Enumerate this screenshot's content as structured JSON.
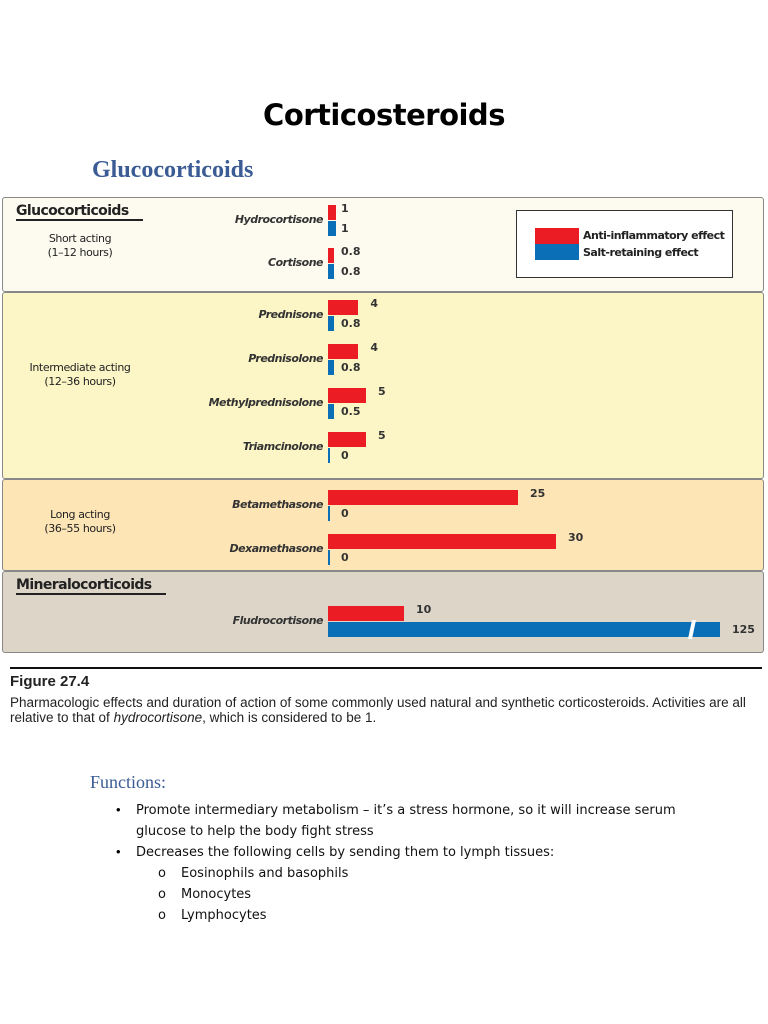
{
  "title": "Corticosteroids",
  "subtitle": "Glucocorticoids",
  "figure": {
    "sections": {
      "gluco": "Glucocorticoids",
      "mineral": "Mineralocorticoids"
    },
    "groups": [
      {
        "label": "Short acting",
        "duration": "(1–12 hours)"
      },
      {
        "label": "Intermediate acting",
        "duration": "(12–36 hours)"
      },
      {
        "label": "Long acting",
        "duration": "(36–55 hours)"
      }
    ],
    "legend": {
      "anti": "Anti-inflammatory effect",
      "salt": "Salt-retaining effect"
    },
    "colors": {
      "anti": "#ec1c24",
      "salt": "#0b6fb8"
    },
    "number": "Figure 27.4",
    "caption_pre": "Pharmacologic effects and duration of action of some commonly used natural and synthetic corticosteroids. Activities are all relative to that of ",
    "caption_italic": "hydrocortisone",
    "caption_post": ", which is considered to be 1."
  },
  "chart_data": {
    "type": "bar",
    "categories": [
      "Hydrocortisone",
      "Cortisone",
      "Prednisone",
      "Prednisolone",
      "Methylprednisolone",
      "Triamcinolone",
      "Betamethasone",
      "Dexamethasone",
      "Fludrocortisone"
    ],
    "series": [
      {
        "name": "Anti-inflammatory effect",
        "values": [
          1,
          0.8,
          4,
          4,
          5,
          5,
          25,
          30,
          10
        ],
        "labels": [
          "1",
          "0.8",
          "4",
          "4",
          "5",
          "5",
          "25",
          "30",
          "10"
        ]
      },
      {
        "name": "Salt-retaining effect",
        "values": [
          1,
          0.8,
          0.8,
          0.8,
          0.5,
          0,
          0,
          0,
          125
        ],
        "labels": [
          "1",
          "0.8",
          "0.8",
          "0.8",
          "0.5",
          "0",
          "0",
          "0",
          "125"
        ]
      }
    ],
    "axis_break": "Fludrocortisone salt-retaining bar"
  },
  "functions": {
    "heading": "Functions:",
    "items": [
      {
        "text": "Promote intermediary metabolism – it’s a stress hormone, so it will increase serum",
        "text2": "glucose to help the body fight stress"
      },
      {
        "text": "Decreases the following cells by sending them to lymph tissues:",
        "subitems": [
          "Eosinophils and basophils",
          "Monocytes",
          "Lymphocytes"
        ]
      }
    ]
  }
}
